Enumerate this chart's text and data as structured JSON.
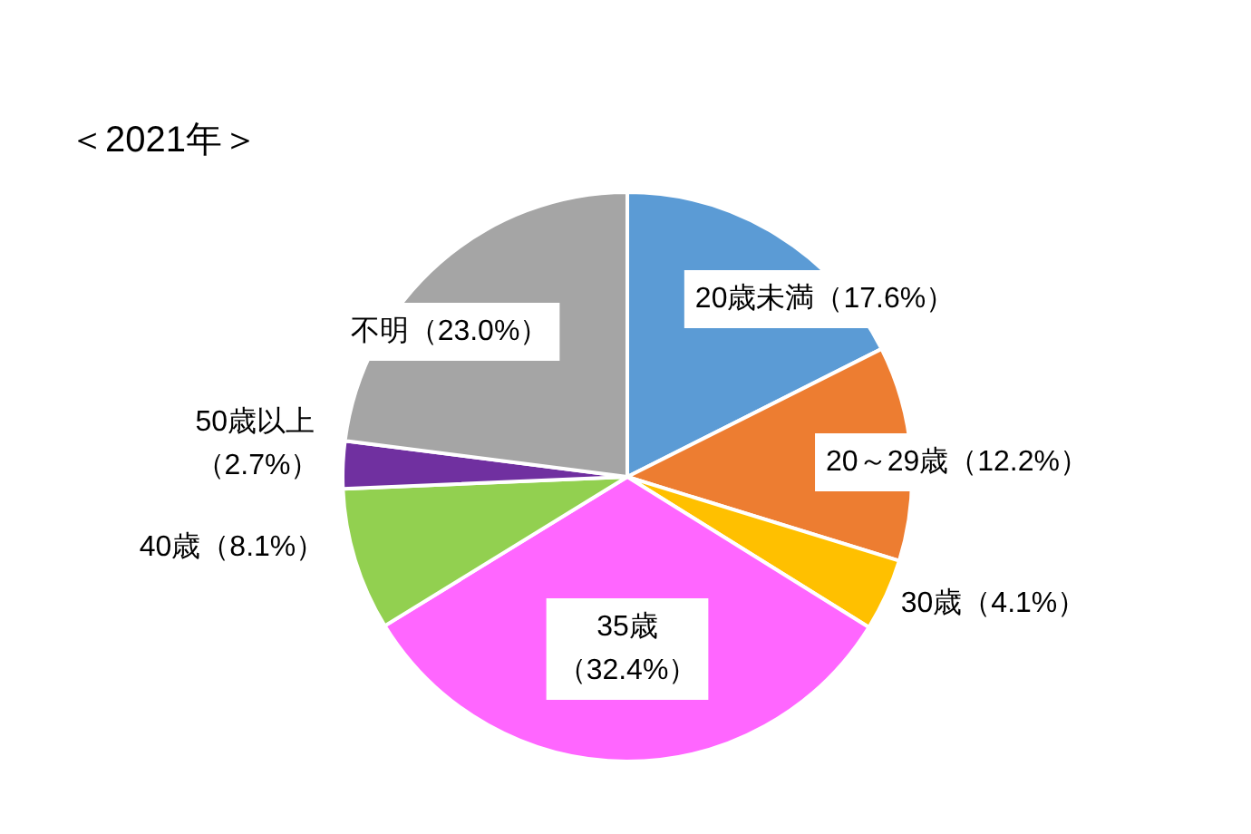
{
  "chart_data": {
    "type": "pie",
    "title": "＜2021年＞",
    "categories": [
      "20歳未満",
      "20～29歳",
      "30歳",
      "35歳",
      "40歳",
      "50歳以上",
      "不明"
    ],
    "values": [
      17.6,
      12.2,
      4.1,
      32.4,
      8.1,
      2.7,
      23.0
    ],
    "value_labels": [
      "（17.6%）",
      "（12.2%）",
      "（4.1%）",
      "（32.4%）",
      "（8.1%）",
      "（2.7%）",
      "（23.0%）"
    ],
    "colors": [
      "#5b9bd5",
      "#ed7d31",
      "#ffc000",
      "#ff66ff",
      "#92d050",
      "#7030a0",
      "#a5a5a5"
    ],
    "legend": false
  }
}
